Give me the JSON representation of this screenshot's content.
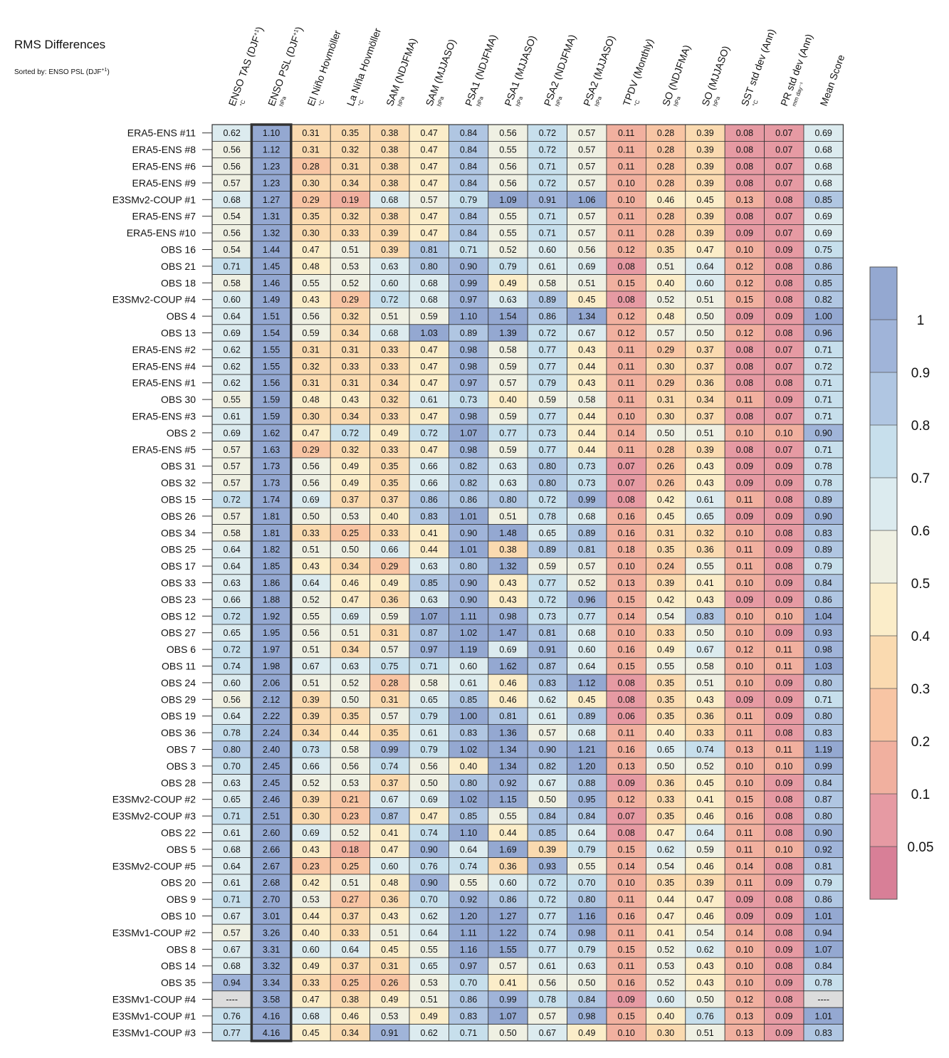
{
  "chart_data": {
    "type": "heatmap",
    "title": "RMS Differences",
    "subtitle": "Sorted by: ENSO PSL (DJF",
    "subtitle_sup": "+1",
    "subtitle_close": ")",
    "columns": [
      {
        "name": "ENSO TAS (DJF",
        "sup": "+1",
        "close": ")",
        "unit": "°C"
      },
      {
        "name": "ENSO PSL (DJF",
        "sup": "+1",
        "close": ")",
        "unit": "hPa"
      },
      {
        "name": "El Niño Hovmöller",
        "sup": "",
        "close": "",
        "unit": "°C"
      },
      {
        "name": "La Niña Hovmöller",
        "sup": "",
        "close": "",
        "unit": "°C"
      },
      {
        "name": "SAM (NDJFMA)",
        "sup": "",
        "close": "",
        "unit": "hPa"
      },
      {
        "name": "SAM (MJJASO)",
        "sup": "",
        "close": "",
        "unit": "hPa"
      },
      {
        "name": "PSA1 (NDJFMA)",
        "sup": "",
        "close": "",
        "unit": "hPa"
      },
      {
        "name": "PSA1 (MJJASO)",
        "sup": "",
        "close": "",
        "unit": "hPa"
      },
      {
        "name": "PSA2 (NDJFMA)",
        "sup": "",
        "close": "",
        "unit": "hPa"
      },
      {
        "name": "PSA2 (MJJASO)",
        "sup": "",
        "close": "",
        "unit": "hPa"
      },
      {
        "name": "TPDV (Monthly)",
        "sup": "",
        "close": "",
        "unit": "°C"
      },
      {
        "name": "SO (NDJFMA)",
        "sup": "",
        "close": "",
        "unit": "hPa"
      },
      {
        "name": "SO (MJJASO)",
        "sup": "",
        "close": "",
        "unit": "hPa"
      },
      {
        "name": "SST std dev (Ann)",
        "sup": "",
        "close": "",
        "unit": "°C"
      },
      {
        "name": "PR std dev (Ann)",
        "sup": "",
        "close": "",
        "unit": "mm day⁻¹"
      },
      {
        "name": "Mean Score",
        "sup": "",
        "close": "",
        "unit": ""
      }
    ],
    "rows": [
      "ERA5-ENS    #11",
      "ERA5-ENS    #8",
      "ERA5-ENS    #6",
      "ERA5-ENS    #9",
      "E3SMv2-COUP #1",
      "ERA5-ENS    #7",
      "ERA5-ENS    #10",
      "OBS 16",
      "OBS 21",
      "OBS 18",
      "E3SMv2-COUP #4",
      "OBS 4",
      "OBS 13",
      "ERA5-ENS    #2",
      "ERA5-ENS    #4",
      "ERA5-ENS    #1",
      "OBS 30",
      "ERA5-ENS    #3",
      "OBS 2",
      "ERA5-ENS    #5",
      "OBS 31",
      "OBS 32",
      "OBS 15",
      "OBS 26",
      "OBS 34",
      "OBS 25",
      "OBS 17",
      "OBS 33",
      "OBS 23",
      "OBS 12",
      "OBS 27",
      "OBS 6",
      "OBS 11",
      "OBS 24",
      "OBS 29",
      "OBS 19",
      "OBS 36",
      "OBS 7",
      "OBS 3",
      "OBS 28",
      "E3SMv2-COUP #2",
      "E3SMv2-COUP #3",
      "OBS 22",
      "OBS 5",
      "E3SMv2-COUP #5",
      "OBS 20",
      "OBS 9",
      "OBS 10",
      "E3SMv1-COUP #2",
      "OBS 8",
      "OBS 14",
      "OBS 35",
      "E3SMv1-COUP #4",
      "E3SMv1-COUP #1",
      "E3SMv1-COUP #3"
    ],
    "values": [
      [
        0.62,
        1.1,
        0.31,
        0.35,
        0.38,
        0.47,
        0.84,
        0.56,
        0.72,
        0.57,
        0.11,
        0.28,
        0.39,
        0.08,
        0.07,
        0.69
      ],
      [
        0.56,
        1.12,
        0.31,
        0.32,
        0.38,
        0.47,
        0.84,
        0.55,
        0.72,
        0.57,
        0.11,
        0.28,
        0.39,
        0.08,
        0.07,
        0.68
      ],
      [
        0.56,
        1.23,
        0.28,
        0.31,
        0.38,
        0.47,
        0.84,
        0.56,
        0.71,
        0.57,
        0.11,
        0.28,
        0.39,
        0.08,
        0.07,
        0.68
      ],
      [
        0.57,
        1.23,
        0.3,
        0.34,
        0.38,
        0.47,
        0.84,
        0.56,
        0.72,
        0.57,
        0.1,
        0.28,
        0.39,
        0.08,
        0.07,
        0.68
      ],
      [
        0.68,
        1.27,
        0.29,
        0.19,
        0.68,
        0.57,
        0.79,
        1.09,
        0.91,
        1.06,
        0.1,
        0.46,
        0.45,
        0.13,
        0.08,
        0.85
      ],
      [
        0.54,
        1.31,
        0.35,
        0.32,
        0.38,
        0.47,
        0.84,
        0.55,
        0.71,
        0.57,
        0.11,
        0.28,
        0.39,
        0.08,
        0.07,
        0.69
      ],
      [
        0.56,
        1.32,
        0.3,
        0.33,
        0.39,
        0.47,
        0.84,
        0.55,
        0.71,
        0.57,
        0.11,
        0.28,
        0.39,
        0.09,
        0.07,
        0.69
      ],
      [
        0.54,
        1.44,
        0.47,
        0.51,
        0.39,
        0.81,
        0.71,
        0.52,
        0.6,
        0.56,
        0.12,
        0.35,
        0.47,
        0.1,
        0.09,
        0.75
      ],
      [
        0.71,
        1.45,
        0.48,
        0.53,
        0.63,
        0.8,
        0.9,
        0.79,
        0.61,
        0.69,
        0.08,
        0.51,
        0.64,
        0.12,
        0.08,
        0.86
      ],
      [
        0.58,
        1.46,
        0.55,
        0.52,
        0.6,
        0.68,
        0.99,
        0.49,
        0.58,
        0.51,
        0.15,
        0.4,
        0.6,
        0.12,
        0.08,
        0.85
      ],
      [
        0.6,
        1.49,
        0.43,
        0.29,
        0.72,
        0.68,
        0.97,
        0.63,
        0.89,
        0.45,
        0.08,
        0.52,
        0.51,
        0.15,
        0.08,
        0.82
      ],
      [
        0.64,
        1.51,
        0.56,
        0.32,
        0.51,
        0.59,
        1.1,
        1.54,
        0.86,
        1.34,
        0.12,
        0.48,
        0.5,
        0.09,
        0.09,
        1.0
      ],
      [
        0.69,
        1.54,
        0.59,
        0.34,
        0.68,
        1.03,
        0.89,
        1.39,
        0.72,
        0.67,
        0.12,
        0.57,
        0.5,
        0.12,
        0.08,
        0.96
      ],
      [
        0.62,
        1.55,
        0.31,
        0.31,
        0.33,
        0.47,
        0.98,
        0.58,
        0.77,
        0.43,
        0.11,
        0.29,
        0.37,
        0.08,
        0.07,
        0.71
      ],
      [
        0.62,
        1.55,
        0.32,
        0.33,
        0.33,
        0.47,
        0.98,
        0.59,
        0.77,
        0.44,
        0.11,
        0.3,
        0.37,
        0.08,
        0.07,
        0.72
      ],
      [
        0.62,
        1.56,
        0.31,
        0.31,
        0.34,
        0.47,
        0.97,
        0.57,
        0.79,
        0.43,
        0.11,
        0.29,
        0.36,
        0.08,
        0.08,
        0.71
      ],
      [
        0.55,
        1.59,
        0.48,
        0.43,
        0.32,
        0.61,
        0.73,
        0.4,
        0.59,
        0.58,
        0.11,
        0.31,
        0.34,
        0.11,
        0.09,
        0.71
      ],
      [
        0.61,
        1.59,
        0.3,
        0.34,
        0.33,
        0.47,
        0.98,
        0.59,
        0.77,
        0.44,
        0.1,
        0.3,
        0.37,
        0.08,
        0.07,
        0.71
      ],
      [
        0.69,
        1.62,
        0.47,
        0.72,
        0.49,
        0.72,
        1.07,
        0.77,
        0.73,
        0.44,
        0.14,
        0.5,
        0.51,
        0.1,
        0.1,
        0.9
      ],
      [
        0.57,
        1.63,
        0.29,
        0.32,
        0.33,
        0.47,
        0.98,
        0.59,
        0.77,
        0.44,
        0.11,
        0.28,
        0.39,
        0.08,
        0.07,
        0.71
      ],
      [
        0.57,
        1.73,
        0.56,
        0.49,
        0.35,
        0.66,
        0.82,
        0.63,
        0.8,
        0.73,
        0.07,
        0.26,
        0.43,
        0.09,
        0.09,
        0.78
      ],
      [
        0.57,
        1.73,
        0.56,
        0.49,
        0.35,
        0.66,
        0.82,
        0.63,
        0.8,
        0.73,
        0.07,
        0.26,
        0.43,
        0.09,
        0.09,
        0.78
      ],
      [
        0.72,
        1.74,
        0.69,
        0.37,
        0.37,
        0.86,
        0.86,
        0.8,
        0.72,
        0.99,
        0.08,
        0.42,
        0.61,
        0.11,
        0.08,
        0.89
      ],
      [
        0.57,
        1.81,
        0.5,
        0.53,
        0.4,
        0.83,
        1.01,
        0.51,
        0.78,
        0.68,
        0.16,
        0.45,
        0.65,
        0.09,
        0.09,
        0.9
      ],
      [
        0.58,
        1.81,
        0.33,
        0.25,
        0.33,
        0.41,
        0.9,
        1.48,
        0.65,
        0.89,
        0.16,
        0.31,
        0.32,
        0.1,
        0.08,
        0.83
      ],
      [
        0.64,
        1.82,
        0.51,
        0.5,
        0.66,
        0.44,
        1.01,
        0.38,
        0.89,
        0.81,
        0.18,
        0.35,
        0.36,
        0.11,
        0.09,
        0.89
      ],
      [
        0.64,
        1.85,
        0.43,
        0.34,
        0.29,
        0.63,
        0.8,
        1.32,
        0.59,
        0.57,
        0.1,
        0.24,
        0.55,
        0.11,
        0.08,
        0.79
      ],
      [
        0.63,
        1.86,
        0.64,
        0.46,
        0.49,
        0.85,
        0.9,
        0.43,
        0.77,
        0.52,
        0.13,
        0.39,
        0.41,
        0.1,
        0.09,
        0.84
      ],
      [
        0.66,
        1.88,
        0.52,
        0.47,
        0.36,
        0.63,
        0.9,
        0.43,
        0.72,
        0.96,
        0.15,
        0.42,
        0.43,
        0.09,
        0.09,
        0.86
      ],
      [
        0.72,
        1.92,
        0.55,
        0.69,
        0.59,
        1.07,
        1.11,
        0.98,
        0.73,
        0.77,
        0.14,
        0.54,
        0.83,
        0.1,
        0.1,
        1.04
      ],
      [
        0.65,
        1.95,
        0.56,
        0.51,
        0.31,
        0.87,
        1.02,
        1.47,
        0.81,
        0.68,
        0.1,
        0.33,
        0.5,
        0.1,
        0.09,
        0.93
      ],
      [
        0.72,
        1.97,
        0.51,
        0.34,
        0.57,
        0.97,
        1.19,
        0.69,
        0.91,
        0.6,
        0.16,
        0.49,
        0.67,
        0.12,
        0.11,
        0.98
      ],
      [
        0.74,
        1.98,
        0.67,
        0.63,
        0.75,
        0.71,
        0.6,
        1.62,
        0.87,
        0.64,
        0.15,
        0.55,
        0.58,
        0.1,
        0.11,
        1.03
      ],
      [
        0.6,
        2.06,
        0.51,
        0.52,
        0.28,
        0.58,
        0.61,
        0.46,
        0.83,
        1.12,
        0.08,
        0.35,
        0.51,
        0.1,
        0.09,
        0.8
      ],
      [
        0.56,
        2.12,
        0.39,
        0.5,
        0.31,
        0.65,
        0.85,
        0.46,
        0.62,
        0.45,
        0.08,
        0.35,
        0.43,
        0.09,
        0.09,
        0.71
      ],
      [
        0.64,
        2.22,
        0.39,
        0.35,
        0.57,
        0.79,
        1.0,
        0.81,
        0.61,
        0.89,
        0.06,
        0.35,
        0.36,
        0.11,
        0.09,
        0.8
      ],
      [
        0.78,
        2.24,
        0.34,
        0.44,
        0.35,
        0.61,
        0.83,
        1.36,
        0.57,
        0.68,
        0.11,
        0.4,
        0.33,
        0.11,
        0.08,
        0.83
      ],
      [
        0.8,
        2.4,
        0.73,
        0.58,
        0.99,
        0.79,
        1.02,
        1.34,
        0.9,
        1.21,
        0.16,
        0.65,
        0.74,
        0.13,
        0.11,
        1.19
      ],
      [
        0.7,
        2.45,
        0.66,
        0.56,
        0.74,
        0.56,
        0.4,
        1.34,
        0.82,
        1.2,
        0.13,
        0.5,
        0.52,
        0.1,
        0.1,
        0.99
      ],
      [
        0.63,
        2.45,
        0.52,
        0.53,
        0.37,
        0.5,
        0.8,
        0.92,
        0.67,
        0.88,
        0.09,
        0.36,
        0.45,
        0.1,
        0.09,
        0.84
      ],
      [
        0.65,
        2.46,
        0.39,
        0.21,
        0.67,
        0.69,
        1.02,
        1.15,
        0.5,
        0.95,
        0.12,
        0.33,
        0.41,
        0.15,
        0.08,
        0.87
      ],
      [
        0.71,
        2.51,
        0.3,
        0.23,
        0.87,
        0.47,
        0.85,
        0.55,
        0.84,
        0.84,
        0.07,
        0.35,
        0.46,
        0.16,
        0.08,
        0.8
      ],
      [
        0.61,
        2.6,
        0.69,
        0.52,
        0.41,
        0.74,
        1.1,
        0.44,
        0.85,
        0.64,
        0.08,
        0.47,
        0.64,
        0.11,
        0.08,
        0.9
      ],
      [
        0.68,
        2.66,
        0.43,
        0.18,
        0.47,
        0.9,
        0.64,
        1.69,
        0.39,
        0.79,
        0.15,
        0.62,
        0.59,
        0.11,
        0.1,
        0.92
      ],
      [
        0.64,
        2.67,
        0.23,
        0.25,
        0.6,
        0.76,
        0.74,
        0.36,
        0.93,
        0.55,
        0.14,
        0.54,
        0.46,
        0.14,
        0.08,
        0.81
      ],
      [
        0.61,
        2.68,
        0.42,
        0.51,
        0.48,
        0.9,
        0.55,
        0.6,
        0.72,
        0.7,
        0.1,
        0.35,
        0.39,
        0.11,
        0.09,
        0.79
      ],
      [
        0.71,
        2.7,
        0.53,
        0.27,
        0.36,
        0.7,
        0.92,
        0.86,
        0.72,
        0.8,
        0.11,
        0.44,
        0.47,
        0.09,
        0.08,
        0.86
      ],
      [
        0.67,
        3.01,
        0.44,
        0.37,
        0.43,
        0.62,
        1.2,
        1.27,
        0.77,
        1.16,
        0.16,
        0.47,
        0.46,
        0.09,
        0.09,
        1.01
      ],
      [
        0.57,
        3.26,
        0.4,
        0.33,
        0.51,
        0.64,
        1.11,
        1.22,
        0.74,
        0.98,
        0.11,
        0.41,
        0.54,
        0.14,
        0.08,
        0.94
      ],
      [
        0.67,
        3.31,
        0.6,
        0.64,
        0.45,
        0.55,
        1.16,
        1.55,
        0.77,
        0.79,
        0.15,
        0.52,
        0.62,
        0.1,
        0.09,
        1.07
      ],
      [
        0.68,
        3.32,
        0.49,
        0.37,
        0.31,
        0.65,
        0.97,
        0.57,
        0.61,
        0.63,
        0.11,
        0.53,
        0.43,
        0.1,
        0.08,
        0.84
      ],
      [
        0.94,
        3.34,
        0.33,
        0.25,
        0.26,
        0.53,
        0.7,
        0.41,
        0.56,
        0.5,
        0.16,
        0.52,
        0.43,
        0.1,
        0.09,
        0.78
      ],
      [
        null,
        3.58,
        0.47,
        0.38,
        0.49,
        0.51,
        0.86,
        0.99,
        0.78,
        0.84,
        0.09,
        0.6,
        0.5,
        0.12,
        0.08,
        null
      ],
      [
        0.76,
        4.16,
        0.68,
        0.46,
        0.53,
        0.49,
        0.83,
        1.07,
        0.57,
        0.98,
        0.15,
        0.4,
        0.76,
        0.13,
        0.09,
        1.01
      ],
      [
        0.77,
        4.16,
        0.45,
        0.34,
        0.91,
        0.62,
        0.71,
        0.5,
        0.67,
        0.49,
        0.1,
        0.3,
        0.51,
        0.13,
        0.09,
        0.83
      ]
    ],
    "missing_label": "----",
    "highlighted_column": 1,
    "colorbar": {
      "ticks": [
        "1",
        "0.9",
        "0.8",
        "0.7",
        "0.6",
        "0.5",
        "0.4",
        "0.3",
        "0.2",
        "0.1",
        "0.05"
      ],
      "bounds": [
        0.05,
        0.1,
        0.2,
        0.3,
        0.4,
        0.5,
        0.6,
        0.7,
        0.8,
        0.9,
        1.0
      ],
      "colors": [
        "#d87f97",
        "#e69aa3",
        "#f1b09f",
        "#f8c5a4",
        "#fadab0",
        "#fbedc9",
        "#eff0e3",
        "#dcebef",
        "#c7dfec",
        "#b0c6e2",
        "#a0b4d9",
        "#94a8d1"
      ],
      "missing_color": "#dcdcdc"
    }
  }
}
